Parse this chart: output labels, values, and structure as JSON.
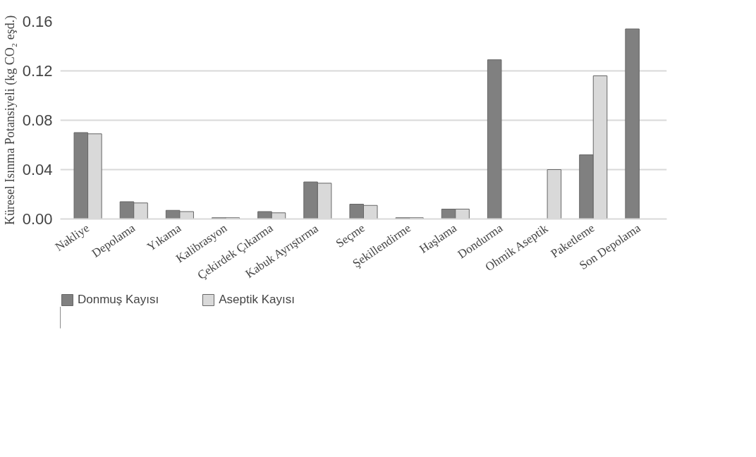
{
  "chart_data": {
    "type": "bar",
    "ylabel": "Küresel Isınma Potansiyeli (kg CO₂ eşd.)",
    "categories": [
      "Nakliye",
      "Depolama",
      "Yıkama",
      "Kalibrasyon",
      "Çekirdek Çıkarma",
      "Kabuk Ayrıştırma",
      "Seçme",
      "Şekillendirme",
      "Haşlama",
      "Dondurma",
      "Ohmik Aseptik",
      "Paketleme",
      "Son Depolama"
    ],
    "series": [
      {
        "name": "Donmuş Kayısı",
        "color": "#808080",
        "values": [
          0.07,
          0.014,
          0.007,
          0.001,
          0.006,
          0.03,
          0.012,
          0.001,
          0.008,
          0.129,
          null,
          0.052,
          0.154
        ]
      },
      {
        "name": "Aseptik Kayısı",
        "color": "#d9d9d9",
        "values": [
          0.069,
          0.013,
          0.006,
          0.001,
          0.005,
          0.029,
          0.011,
          0.001,
          0.008,
          null,
          0.04,
          0.116,
          null
        ]
      }
    ],
    "ylim": [
      0,
      0.16
    ],
    "yticks": [
      {
        "value": 0,
        "label": "0.00"
      },
      0.04,
      0.08,
      0.12,
      0.16
    ],
    "grid": "y",
    "legend": "bottom"
  }
}
